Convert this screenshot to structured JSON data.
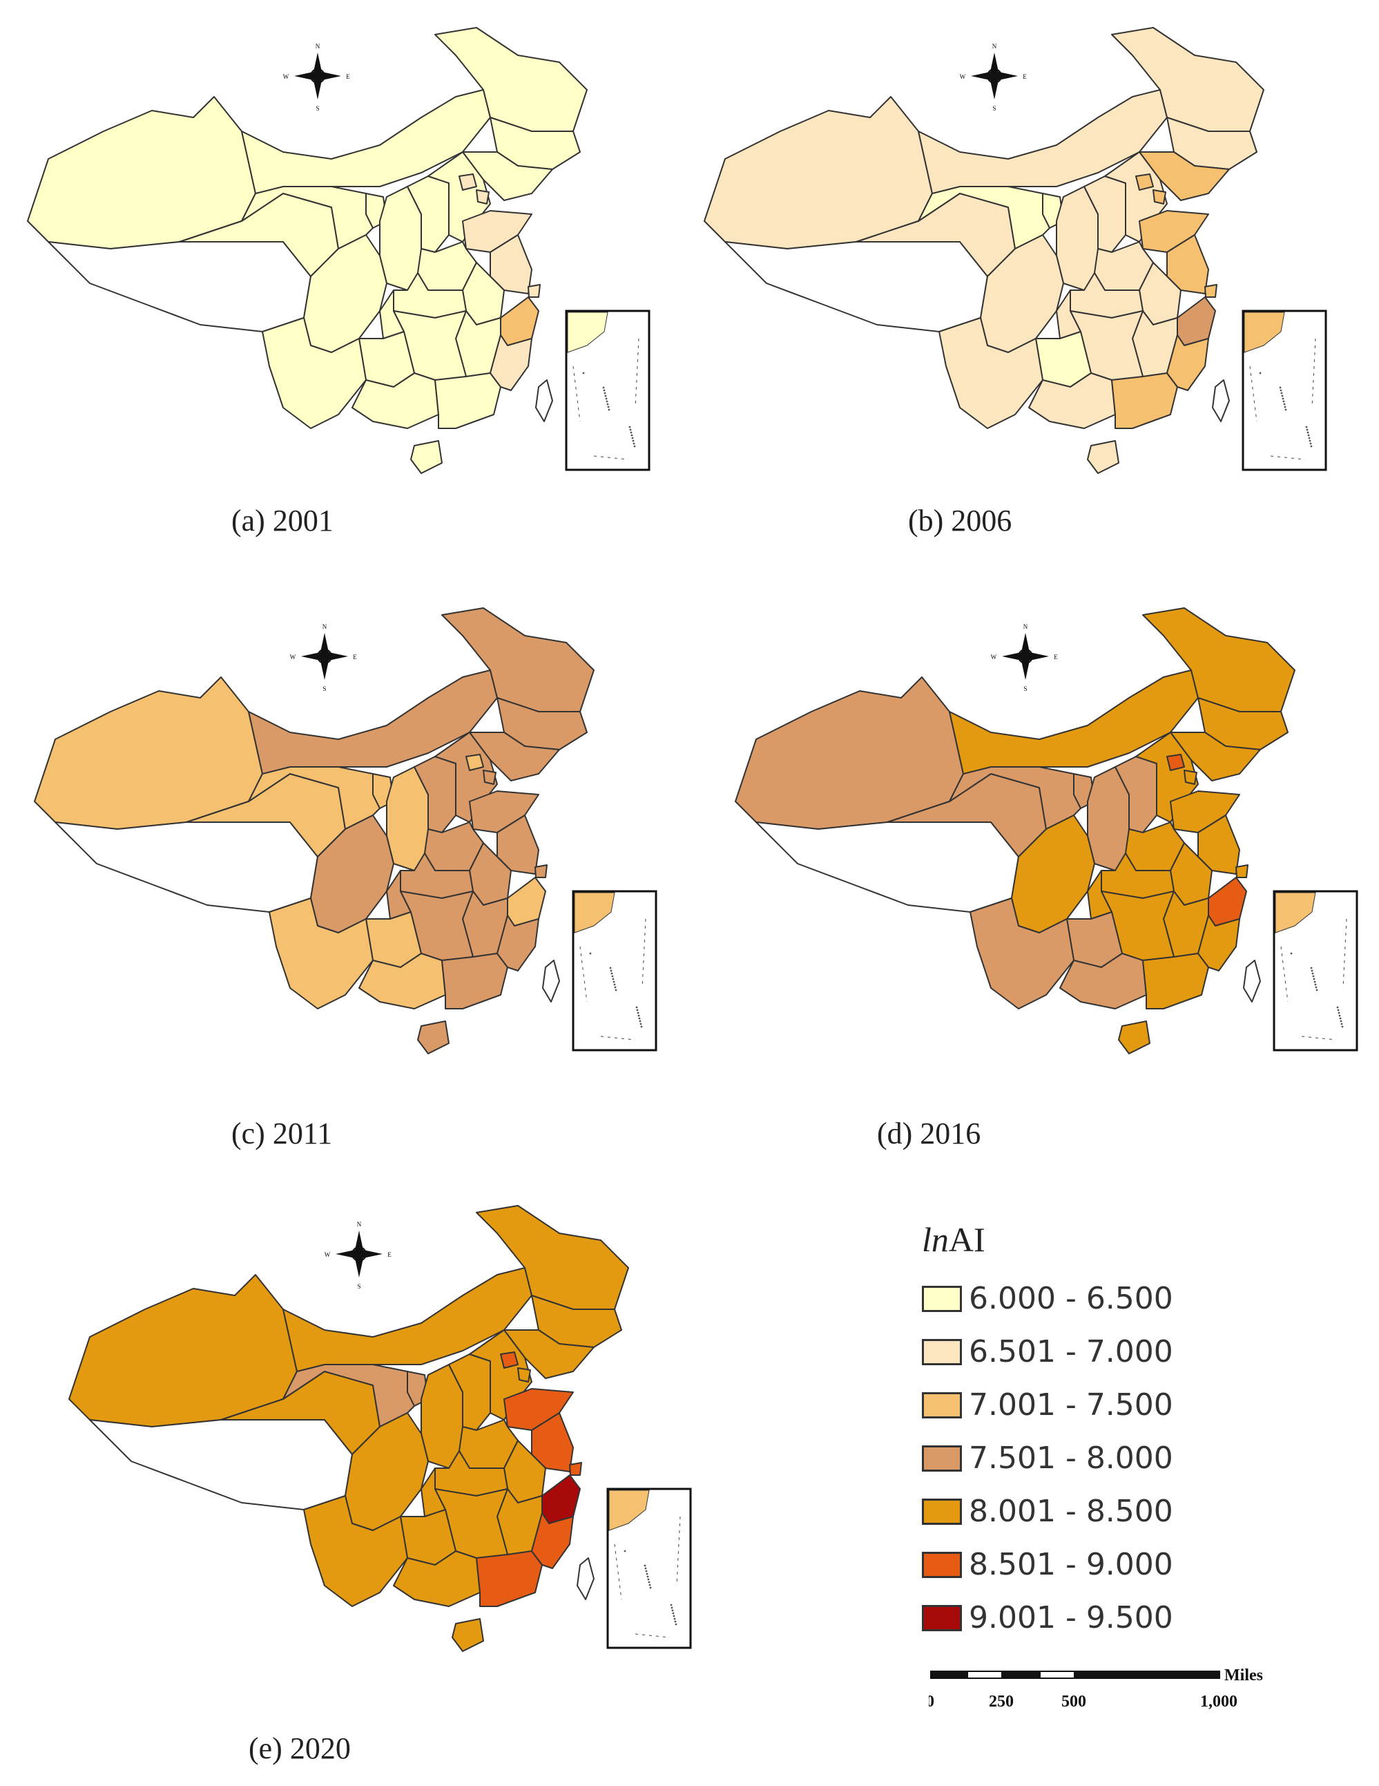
{
  "legend": {
    "title_italic": "ln",
    "title_rest": "AI",
    "classes": [
      {
        "label": "6.000 - 6.500",
        "color": "#FFFFC8"
      },
      {
        "label": "6.501 - 7.000",
        "color": "#FCE6C0"
      },
      {
        "label": "7.001 - 7.500",
        "color": "#F5C070"
      },
      {
        "label": "7.501 - 8.000",
        "color": "#D99A68"
      },
      {
        "label": "8.001 - 8.500",
        "color": "#E39A10"
      },
      {
        "label": "8.501 - 9.000",
        "color": "#E65C14"
      },
      {
        "label": "9.001 - 9.500",
        "color": "#A80A0A"
      }
    ]
  },
  "panels": [
    {
      "caption": "(a) 2001"
    },
    {
      "caption": "(b) 2006"
    },
    {
      "caption": "(c) 2011"
    },
    {
      "caption": "(d) 2016"
    },
    {
      "caption": "(e) 2020"
    }
  ],
  "compass": {
    "n": "N",
    "s": "S",
    "e": "E",
    "w": "W"
  },
  "scale_bar": {
    "unit": "Miles",
    "ticks": [
      "0",
      "250",
      "500",
      "1,000"
    ]
  },
  "map_data": {
    "variable": "lnAI",
    "regions": {
      "xinjiang": [
        0,
        1,
        2,
        3,
        4
      ],
      "tibet": [
        null,
        null,
        null,
        null,
        null
      ],
      "qinghai": [
        0,
        1,
        2,
        3,
        4
      ],
      "gansu": [
        0,
        0,
        2,
        3,
        3
      ],
      "innermongolia": [
        0,
        1,
        3,
        4,
        4
      ],
      "heilongjiang": [
        0,
        1,
        3,
        4,
        4
      ],
      "jilin": [
        0,
        1,
        3,
        4,
        4
      ],
      "liaoning": [
        0,
        2,
        3,
        4,
        4
      ],
      "ningxia": [
        0,
        0,
        2,
        3,
        3
      ],
      "shaanxi": [
        0,
        1,
        2,
        3,
        4
      ],
      "shanxi": [
        0,
        1,
        3,
        3,
        4
      ],
      "hebei": [
        0,
        1,
        3,
        4,
        4
      ],
      "beijing": [
        1,
        2,
        2,
        5,
        5
      ],
      "tianjin": [
        1,
        2,
        3,
        4,
        4
      ],
      "shandong": [
        1,
        2,
        3,
        4,
        5
      ],
      "henan": [
        0,
        1,
        3,
        4,
        4
      ],
      "jiangsu": [
        1,
        2,
        3,
        4,
        5
      ],
      "shanghai": [
        1,
        2,
        3,
        4,
        5
      ],
      "anhui": [
        0,
        1,
        3,
        4,
        4
      ],
      "hubei": [
        0,
        1,
        3,
        4,
        4
      ],
      "sichuan": [
        0,
        1,
        3,
        4,
        4
      ],
      "chongqing": [
        0,
        1,
        3,
        4,
        4
      ],
      "zhejiang": [
        2,
        3,
        2,
        5,
        6
      ],
      "jiangxi": [
        0,
        1,
        3,
        4,
        4
      ],
      "hunan": [
        0,
        1,
        3,
        4,
        4
      ],
      "guizhou": [
        0,
        0,
        2,
        3,
        4
      ],
      "yunnan": [
        0,
        1,
        2,
        3,
        4
      ],
      "guangxi": [
        0,
        1,
        2,
        3,
        4
      ],
      "guangdong": [
        0,
        2,
        3,
        4,
        5
      ],
      "fujian": [
        1,
        2,
        3,
        4,
        5
      ],
      "hainan": [
        0,
        1,
        3,
        4,
        4
      ],
      "taiwan": [
        null,
        null,
        null,
        null,
        null
      ]
    }
  }
}
